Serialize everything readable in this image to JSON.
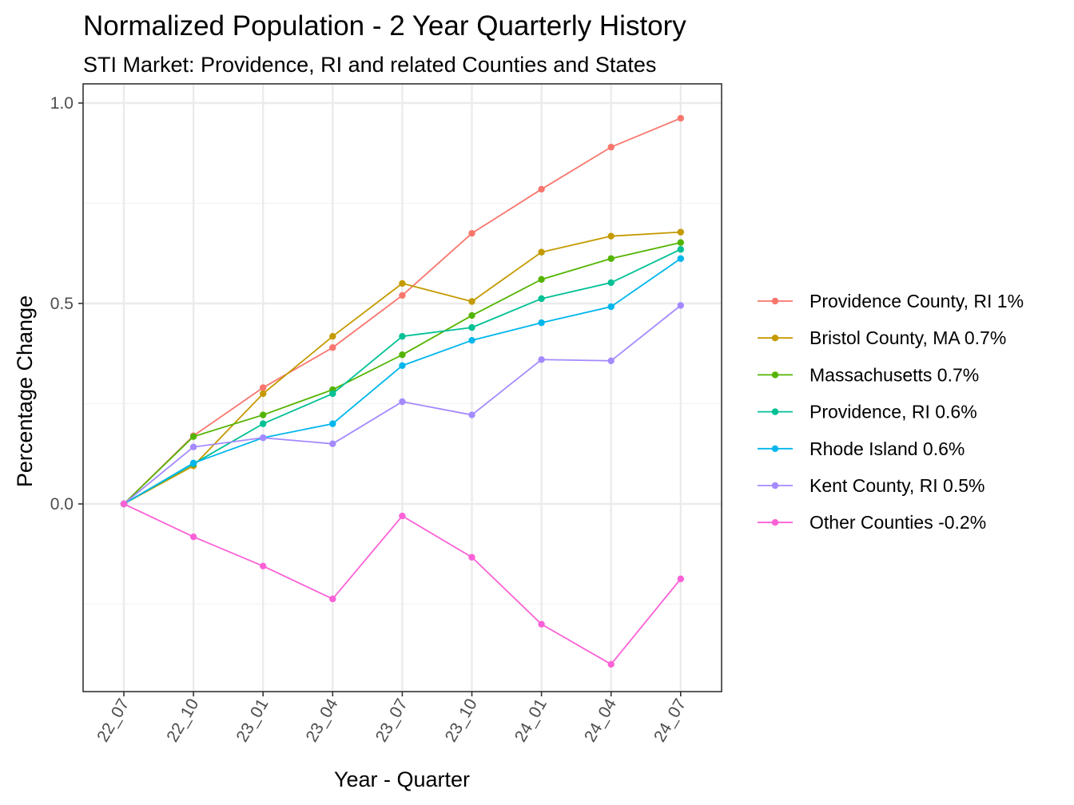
{
  "chart_data": {
    "type": "line",
    "title": "Normalized Population - 2 Year Quarterly History",
    "subtitle": "STI Market: Providence, RI and related Counties and States",
    "xlabel": "Year - Quarter",
    "ylabel": "Percentage Change",
    "categories": [
      "22_07",
      "22_10",
      "23_01",
      "23_04",
      "23_07",
      "23_10",
      "24_01",
      "24_04",
      "24_07"
    ],
    "ylim": [
      -0.47,
      1.0
    ],
    "yticks": [
      0.0,
      0.5,
      1.0
    ],
    "ytick_labels": [
      "0.0",
      "0.5",
      "1.0"
    ],
    "grid": true,
    "legend_position": "right",
    "series": [
      {
        "name": "Providence County, RI 1%",
        "color": "#F8766D",
        "values": [
          0.0,
          0.17,
          0.29,
          0.39,
          0.52,
          0.675,
          0.785,
          0.89,
          0.962
        ]
      },
      {
        "name": "Bristol County, MA 0.7%",
        "color": "#C49A00",
        "values": [
          0.0,
          0.095,
          0.275,
          0.418,
          0.55,
          0.505,
          0.628,
          0.668,
          0.678
        ]
      },
      {
        "name": "Massachusetts 0.7%",
        "color": "#53B400",
        "values": [
          0.0,
          0.168,
          0.222,
          0.285,
          0.372,
          0.47,
          0.56,
          0.612,
          0.652
        ]
      },
      {
        "name": "Providence, RI 0.6%",
        "color": "#00C094",
        "values": [
          0.0,
          0.1,
          0.2,
          0.275,
          0.418,
          0.44,
          0.512,
          0.552,
          0.635
        ]
      },
      {
        "name": "Rhode Island 0.6%",
        "color": "#00B6EB",
        "values": [
          0.0,
          0.102,
          0.165,
          0.2,
          0.345,
          0.408,
          0.452,
          0.492,
          0.612
        ]
      },
      {
        "name": "Kent County, RI 0.5%",
        "color": "#A58AFF",
        "values": [
          0.0,
          0.142,
          0.165,
          0.15,
          0.255,
          0.222,
          0.36,
          0.357,
          0.495
        ]
      },
      {
        "name": "Other Counties -0.2%",
        "color": "#FB61D7",
        "values": [
          0.0,
          -0.082,
          -0.155,
          -0.237,
          -0.03,
          -0.133,
          -0.3,
          -0.4,
          -0.187
        ]
      }
    ]
  }
}
